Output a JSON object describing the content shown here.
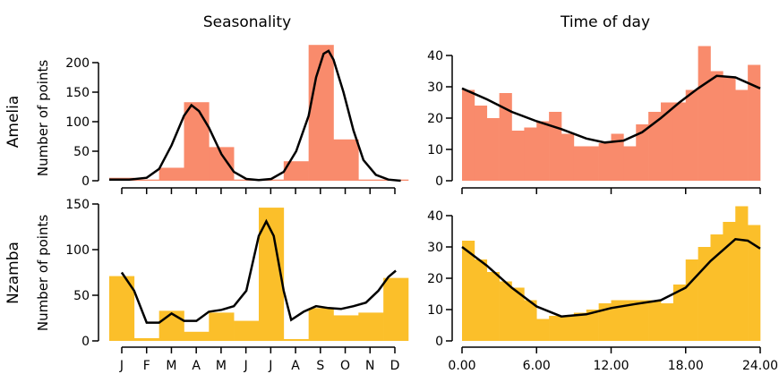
{
  "colors": {
    "amelia": "#f98b6c",
    "nzamba": "#fbbf2a"
  },
  "chart_data": [
    {
      "type": "bar",
      "panel": "amelia-seasonality",
      "title": "Seasonality",
      "row_label": "Amelia",
      "ylabel": "Number of points",
      "categories": [
        "J",
        "F",
        "M",
        "A",
        "M",
        "J",
        "J",
        "A",
        "S",
        "O",
        "N",
        "D"
      ],
      "values": [
        5,
        2,
        22,
        133,
        57,
        2,
        2,
        33,
        230,
        70,
        2,
        2
      ],
      "yticks": [
        0,
        50,
        100,
        150,
        200
      ],
      "ylim": [
        0,
        230
      ],
      "curve": [
        [
          0,
          2
        ],
        [
          0.8,
          2
        ],
        [
          1.5,
          5
        ],
        [
          2,
          20
        ],
        [
          2.5,
          60
        ],
        [
          3,
          110
        ],
        [
          3.3,
          128
        ],
        [
          3.6,
          118
        ],
        [
          4,
          90
        ],
        [
          4.5,
          45
        ],
        [
          5,
          15
        ],
        [
          5.5,
          3
        ],
        [
          6,
          1
        ],
        [
          6.5,
          3
        ],
        [
          7,
          15
        ],
        [
          7.5,
          50
        ],
        [
          8,
          110
        ],
        [
          8.3,
          175
        ],
        [
          8.6,
          215
        ],
        [
          8.8,
          220
        ],
        [
          9,
          205
        ],
        [
          9.4,
          150
        ],
        [
          9.8,
          85
        ],
        [
          10.2,
          35
        ],
        [
          10.7,
          10
        ],
        [
          11.2,
          2
        ],
        [
          11.7,
          0
        ]
      ],
      "color": "#f98b6c"
    },
    {
      "type": "bar",
      "panel": "amelia-time-of-day",
      "title": "Time of day",
      "categories": [
        "0",
        "1",
        "2",
        "3",
        "4",
        "5",
        "6",
        "7",
        "8",
        "9",
        "10",
        "11",
        "12",
        "13",
        "14",
        "15",
        "16",
        "17",
        "18",
        "19",
        "20",
        "21",
        "22",
        "23"
      ],
      "values": [
        29,
        24,
        20,
        28,
        16,
        17,
        19,
        22,
        15,
        11,
        11,
        12,
        15,
        11,
        18,
        22,
        25,
        25,
        29,
        43,
        35,
        33,
        29,
        37
      ],
      "yticks": [
        0,
        10,
        20,
        30,
        40
      ],
      "ylim": [
        0,
        40
      ],
      "curve": [
        [
          0,
          29.5
        ],
        [
          2,
          26
        ],
        [
          4,
          22
        ],
        [
          6,
          19
        ],
        [
          8,
          16.5
        ],
        [
          10,
          13.5
        ],
        [
          11.5,
          12.2
        ],
        [
          13,
          12.8
        ],
        [
          14.5,
          15.5
        ],
        [
          16,
          20
        ],
        [
          17.5,
          25
        ],
        [
          19,
          29.5
        ],
        [
          20.5,
          33.5
        ],
        [
          22,
          33
        ],
        [
          24,
          29.5
        ]
      ],
      "color": "#f98b6c"
    },
    {
      "type": "bar",
      "panel": "nzamba-seasonality",
      "row_label": "Nzamba",
      "ylabel": "Number of points",
      "categories": [
        "J",
        "F",
        "M",
        "A",
        "M",
        "J",
        "J",
        "A",
        "S",
        "O",
        "N",
        "D"
      ],
      "values": [
        71,
        3,
        33,
        10,
        31,
        22,
        146,
        2,
        36,
        28,
        31,
        69
      ],
      "yticks": [
        0,
        50,
        100,
        150
      ],
      "ylim": [
        0,
        150
      ],
      "xticks": [
        "J",
        "F",
        "M",
        "A",
        "M",
        "J",
        "J",
        "A",
        "S",
        "O",
        "N",
        "D"
      ],
      "curve": [
        [
          0.5,
          75
        ],
        [
          1,
          55
        ],
        [
          1.5,
          20
        ],
        [
          2,
          20
        ],
        [
          2.5,
          30
        ],
        [
          3,
          22
        ],
        [
          3.5,
          22
        ],
        [
          4,
          32
        ],
        [
          4.5,
          34
        ],
        [
          5,
          38
        ],
        [
          5.5,
          55
        ],
        [
          6,
          115
        ],
        [
          6.3,
          131
        ],
        [
          6.6,
          115
        ],
        [
          7,
          55
        ],
        [
          7.3,
          23
        ],
        [
          7.8,
          32
        ],
        [
          8.3,
          38
        ],
        [
          8.8,
          36
        ],
        [
          9.3,
          35
        ],
        [
          9.8,
          38
        ],
        [
          10.3,
          42
        ],
        [
          10.8,
          55
        ],
        [
          11.2,
          70
        ],
        [
          11.5,
          77
        ]
      ],
      "color": "#fbbf2a"
    },
    {
      "type": "bar",
      "panel": "nzamba-time-of-day",
      "categories": [
        "0",
        "1",
        "2",
        "3",
        "4",
        "5",
        "6",
        "7",
        "8",
        "9",
        "10",
        "11",
        "12",
        "13",
        "14",
        "15",
        "16",
        "17",
        "18",
        "19",
        "20",
        "21",
        "22",
        "23"
      ],
      "values": [
        32,
        26,
        22,
        19,
        17,
        13,
        7,
        8,
        8,
        9,
        10,
        12,
        13,
        13,
        13,
        13,
        12,
        18,
        26,
        30,
        34,
        38,
        43,
        37
      ],
      "yticks": [
        0,
        10,
        20,
        30,
        40
      ],
      "ylim": [
        0,
        43
      ],
      "xticks": [
        "0.00",
        "6.00",
        "12.00",
        "18.00",
        "24.00"
      ],
      "curve": [
        [
          0,
          30
        ],
        [
          2,
          24
        ],
        [
          4,
          17
        ],
        [
          6,
          11
        ],
        [
          8,
          7.8
        ],
        [
          10,
          8.5
        ],
        [
          12,
          10.5
        ],
        [
          14,
          11.8
        ],
        [
          16,
          13
        ],
        [
          18,
          17
        ],
        [
          20,
          25.5
        ],
        [
          22,
          32.5
        ],
        [
          23,
          32
        ],
        [
          24,
          29.5
        ]
      ],
      "color": "#fbbf2a"
    }
  ]
}
